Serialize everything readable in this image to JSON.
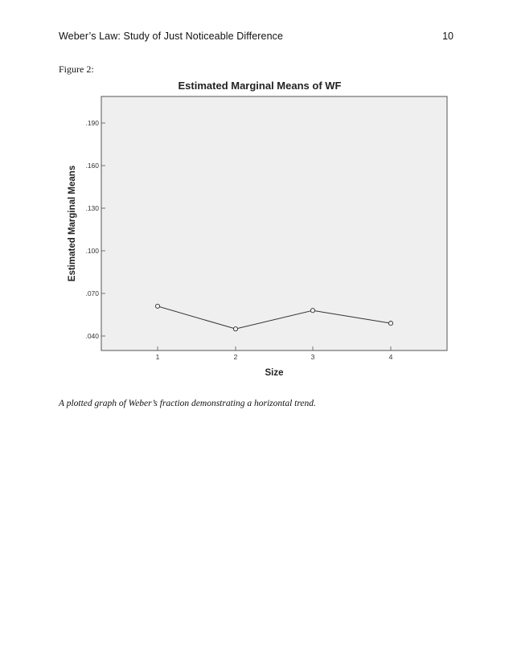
{
  "header": {
    "running_head": "Weber’s Law: Study of Just Noticeable Difference",
    "page_number": "10"
  },
  "figure": {
    "label": "Figure 2:",
    "caption": "A plotted graph of Weber’s fraction demonstrating a horizontal trend."
  },
  "chart_data": {
    "type": "line",
    "title": "Estimated Marginal Means of WF",
    "xlabel": "Size",
    "ylabel": "Estimated Marginal Means",
    "categories": [
      "1",
      "2",
      "3",
      "4"
    ],
    "values": [
      0.061,
      0.045,
      0.058,
      0.049
    ],
    "y_ticks": [
      ".040",
      ".070",
      ".100",
      ".130",
      ".160",
      ".190"
    ],
    "ylim": [
      0.04,
      0.19
    ],
    "grid": false,
    "legend": "none",
    "colors": {
      "plot_background": "#efefef",
      "line": "#333333",
      "frame": "#555555"
    }
  }
}
